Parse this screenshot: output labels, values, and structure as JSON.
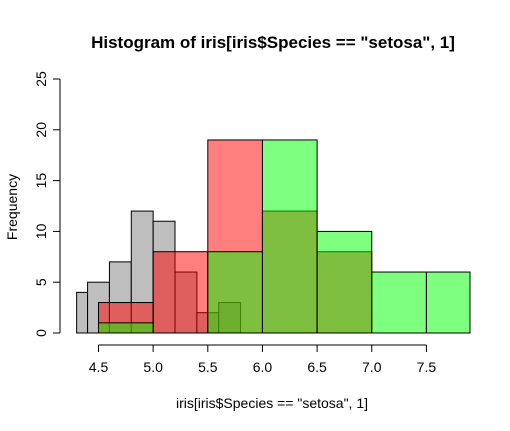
{
  "chart_data": {
    "type": "bar",
    "title": "Histogram of iris[iris$Species == \"setosa\", 1]",
    "xlabel": "iris[iris$Species == \"setosa\", 1]",
    "ylabel": "Frequency",
    "xlim": [
      4.3,
      7.9
    ],
    "ylim": [
      0,
      25
    ],
    "x_ticks": [
      "4.5",
      "5.0",
      "5.5",
      "6.0",
      "6.5",
      "7.0",
      "7.5"
    ],
    "y_ticks": [
      "0",
      "5",
      "10",
      "15",
      "20",
      "25"
    ],
    "grid": false,
    "series": [
      {
        "color": "#bebebe",
        "bins": [
          {
            "x0": 4.3,
            "x1": 4.4,
            "count": 4
          },
          {
            "x0": 4.4,
            "x1": 4.6,
            "count": 5
          },
          {
            "x0": 4.6,
            "x1": 4.8,
            "count": 7
          },
          {
            "x0": 4.8,
            "x1": 5.0,
            "count": 12
          },
          {
            "x0": 5.0,
            "x1": 5.2,
            "count": 11
          },
          {
            "x0": 5.2,
            "x1": 5.4,
            "count": 6
          },
          {
            "x0": 5.4,
            "x1": 5.6,
            "count": 2
          },
          {
            "x0": 5.6,
            "x1": 5.8,
            "count": 3
          }
        ]
      },
      {
        "color": "rgba(255,0,0,0.5)",
        "bins": [
          {
            "x0": 4.5,
            "x1": 5.0,
            "count": 3
          },
          {
            "x0": 5.0,
            "x1": 5.5,
            "count": 8
          },
          {
            "x0": 5.5,
            "x1": 6.0,
            "count": 19
          },
          {
            "x0": 6.0,
            "x1": 6.5,
            "count": 12
          },
          {
            "x0": 6.5,
            "x1": 7.0,
            "count": 8
          }
        ]
      },
      {
        "color": "rgba(0,255,0,0.5)",
        "bins": [
          {
            "x0": 4.5,
            "x1": 5.0,
            "count": 1
          },
          {
            "x0": 5.0,
            "x1": 5.5,
            "count": 0
          },
          {
            "x0": 5.5,
            "x1": 6.0,
            "count": 8
          },
          {
            "x0": 6.0,
            "x1": 6.5,
            "count": 19
          },
          {
            "x0": 6.5,
            "x1": 7.0,
            "count": 10
          },
          {
            "x0": 7.0,
            "x1": 7.5,
            "count": 6
          },
          {
            "x0": 7.5,
            "x1": 8.0,
            "count": 6
          }
        ]
      }
    ]
  }
}
